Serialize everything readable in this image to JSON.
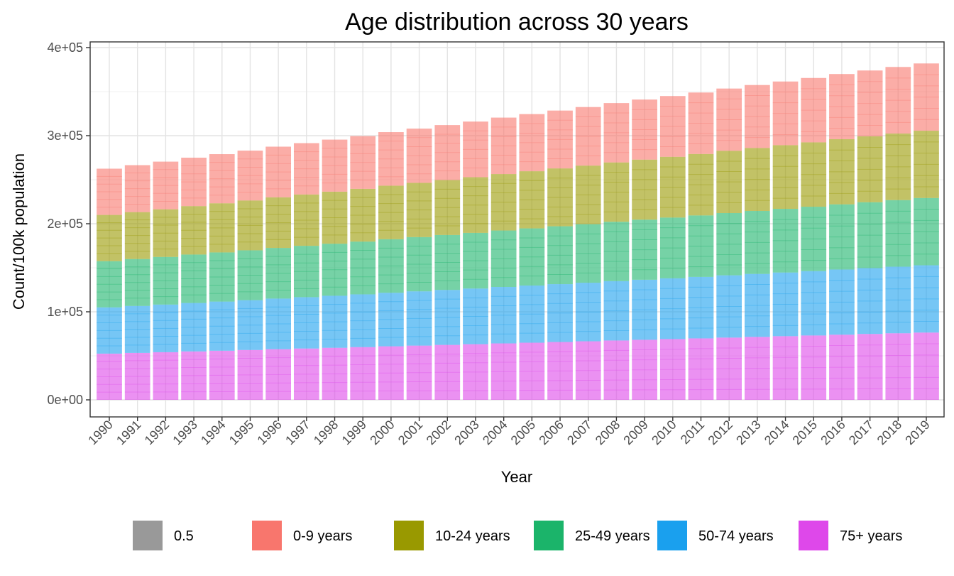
{
  "chart_data": {
    "type": "bar",
    "stacked": true,
    "title": "Age distribution across 30 years",
    "xlabel": "Year",
    "ylabel": "Count/100k population",
    "ylim": [
      0,
      420000
    ],
    "y_ticks": [
      0,
      100000,
      200000,
      300000,
      400000
    ],
    "y_tick_labels": [
      "0e+00",
      "1e+05",
      "2e+05",
      "3e+05",
      "4e+05"
    ],
    "grid": true,
    "legend_position": "bottom",
    "categories": [
      "1990",
      "1991",
      "1992",
      "1993",
      "1994",
      "1995",
      "1996",
      "1997",
      "1998",
      "1999",
      "2000",
      "2001",
      "2002",
      "2003",
      "2004",
      "2005",
      "2006",
      "2007",
      "2008",
      "2009",
      "2010",
      "2011",
      "2012",
      "2013",
      "2014",
      "2015",
      "2016",
      "2017",
      "2018",
      "2019"
    ],
    "legend": [
      {
        "label": "0.5",
        "color": "#999999"
      },
      {
        "label": "0-9 years",
        "color": "#F8766D"
      },
      {
        "label": "10-24 years",
        "color": "#999900"
      },
      {
        "label": "25-49 years",
        "color": "#1BB46A"
      },
      {
        "label": "50-74 years",
        "color": "#1AA0EE"
      },
      {
        "label": "75+ years",
        "color": "#DE48EA"
      }
    ],
    "series": [
      {
        "name": "75+ years",
        "color": "#DE48EA",
        "values": [
          52500,
          53300,
          54100,
          55000,
          55800,
          56600,
          57500,
          58300,
          59100,
          59900,
          60800,
          61600,
          62400,
          63200,
          64100,
          64900,
          65700,
          66500,
          67400,
          68200,
          69000,
          69800,
          70700,
          71500,
          72300,
          73100,
          74000,
          74800,
          75600,
          76400
        ]
      },
      {
        "name": "50-74 years",
        "color": "#1AA0EE",
        "values": [
          52500,
          53300,
          54100,
          55000,
          55800,
          56600,
          57500,
          58300,
          59100,
          59900,
          60800,
          61600,
          62400,
          63200,
          64100,
          64900,
          65700,
          66500,
          67400,
          68200,
          69000,
          69800,
          70700,
          71500,
          72300,
          73100,
          74000,
          74800,
          75600,
          76400
        ]
      },
      {
        "name": "25-49 years",
        "color": "#1BB46A",
        "values": [
          52500,
          53300,
          54100,
          55000,
          55800,
          56600,
          57500,
          58300,
          59100,
          59900,
          60800,
          61600,
          62400,
          63200,
          64100,
          64900,
          65700,
          66500,
          67400,
          68200,
          69000,
          69800,
          70700,
          71500,
          72300,
          73100,
          74000,
          74800,
          75600,
          76400
        ]
      },
      {
        "name": "10-24 years",
        "color": "#999900",
        "values": [
          52500,
          53300,
          54100,
          55000,
          55800,
          56600,
          57500,
          58300,
          59100,
          59900,
          60800,
          61600,
          62400,
          63200,
          64100,
          64900,
          65700,
          66500,
          67400,
          68200,
          69000,
          69800,
          70700,
          71500,
          72300,
          73100,
          74000,
          74800,
          75600,
          76400
        ]
      },
      {
        "name": "0-9 years",
        "color": "#F8766D",
        "values": [
          52500,
          53300,
          54100,
          55000,
          55800,
          56600,
          57500,
          58300,
          59100,
          59900,
          60800,
          61600,
          62400,
          63200,
          64100,
          64900,
          65700,
          66500,
          67400,
          68200,
          69000,
          69800,
          70700,
          71500,
          72300,
          73100,
          74000,
          74800,
          75600,
          76400
        ]
      }
    ]
  }
}
